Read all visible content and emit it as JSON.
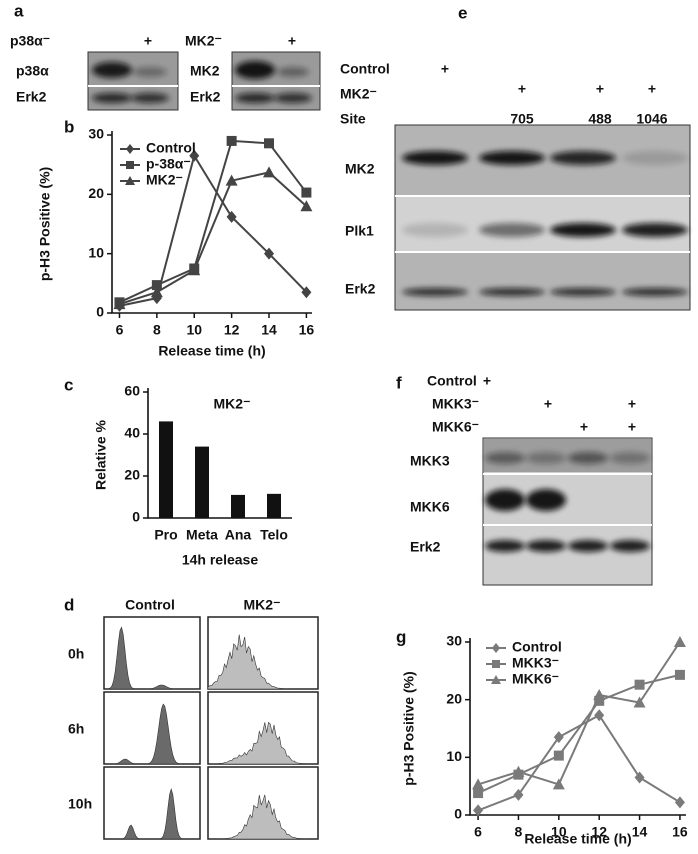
{
  "panel_labels": [
    "a",
    "b",
    "c",
    "d",
    "e",
    "f",
    "g"
  ],
  "blot_a": {
    "header_left": "p38α⁻",
    "plus_left": "+",
    "rows_left": [
      "p38α",
      "Erk2"
    ],
    "header_right": "MK2⁻",
    "plus_right": "+",
    "rows_right": [
      "MK2",
      "Erk2"
    ]
  },
  "panel_d": {
    "columns": [
      "Control",
      "MK2⁻"
    ],
    "rows": [
      "0h",
      "6h",
      "10h"
    ]
  },
  "blot_e": {
    "conditions": [
      {
        "name": "Control",
        "marks": [
          "+"
        ]
      },
      {
        "name": "MK2⁻",
        "marks": [
          "+",
          "+",
          "+"
        ]
      },
      {
        "name": "Site",
        "marks": [
          "705",
          "488",
          "1046"
        ]
      }
    ],
    "bands": [
      "MK2",
      "Plk1",
      "Erk2"
    ]
  },
  "blot_f": {
    "conditions": [
      {
        "name": "Control",
        "marks": [
          "+"
        ]
      },
      {
        "name": "MKK3⁻",
        "marks": [
          "+",
          "+"
        ]
      },
      {
        "name": "MKK6⁻",
        "marks": [
          "+",
          "+"
        ]
      }
    ],
    "bands": [
      "MKK3",
      "MKK6",
      "Erk2"
    ]
  },
  "chart_data": [
    {
      "type": "line",
      "x": [
        6,
        8,
        10,
        12,
        14,
        16
      ],
      "xlim": [
        5.6,
        16.3
      ],
      "xticks": [
        6,
        8,
        10,
        12,
        14,
        16
      ],
      "ylim": [
        0,
        30
      ],
      "yticks": [
        0,
        10,
        20,
        30
      ],
      "x_label": "Release time (h)",
      "y_label": "p-H3 Positive (%)",
      "legend": "upper left",
      "series": [
        {
          "name": "Control",
          "color": "#444444",
          "marker": "diamond",
          "values": [
            1.2,
            2.5,
            26.5,
            16.2,
            10,
            3.5
          ]
        },
        {
          "name": "p-38α⁻",
          "color": "#444444",
          "marker": "square",
          "values": [
            1.8,
            4.7,
            7.5,
            29,
            28.6,
            20.3
          ]
        },
        {
          "name": "MK2⁻",
          "color": "#444444",
          "marker": "triangle",
          "values": [
            1.5,
            3.5,
            7.2,
            22.3,
            23.7,
            18
          ]
        }
      ]
    },
    {
      "type": "bar",
      "title": "MK2⁻",
      "categories": [
        "Pro",
        "Meta",
        "Ana",
        "Telo"
      ],
      "values": [
        46,
        34,
        11,
        11.5
      ],
      "color": "#111111",
      "ylim": [
        0,
        60
      ],
      "yticks": [
        0,
        20,
        40,
        60
      ],
      "x_label": "14h release",
      "y_label": "Relative %"
    },
    {
      "type": "line",
      "x": [
        6,
        8,
        10,
        12,
        14,
        16
      ],
      "xlim": [
        5.6,
        16.3
      ],
      "xticks": [
        6,
        8,
        10,
        12,
        14,
        16
      ],
      "ylim": [
        0,
        30
      ],
      "yticks": [
        0,
        10,
        20,
        30
      ],
      "x_label": "Release time (h)",
      "y_label": "p-H3 Positive (%)",
      "legend": "upper left",
      "series": [
        {
          "name": "Control",
          "color": "#7a7a7a",
          "marker": "diamond",
          "values": [
            0.8,
            3.5,
            13.5,
            17.3,
            6.5,
            2.2
          ]
        },
        {
          "name": "MKK3⁻",
          "color": "#7a7a7a",
          "marker": "square",
          "values": [
            3.8,
            7,
            10.3,
            19.8,
            22.6,
            24.3
          ]
        },
        {
          "name": "MKK6⁻",
          "color": "#7a7a7a",
          "marker": "triangle",
          "values": [
            5.3,
            7.5,
            5.3,
            20.8,
            19.5,
            30
          ]
        }
      ]
    }
  ]
}
